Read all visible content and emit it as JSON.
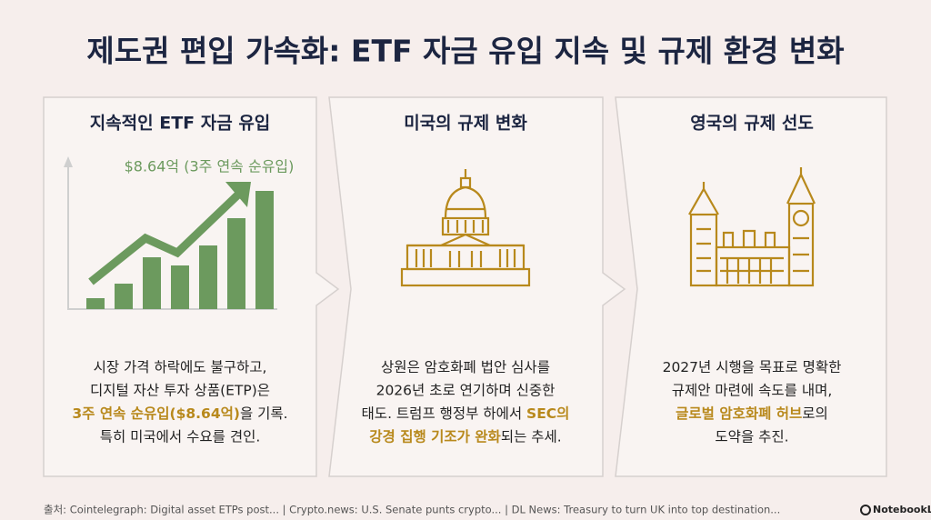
{
  "header": {
    "title": "제도권 편입 가속화: ETF 자금 유입 지속 및 규제 환경 변화"
  },
  "panels": [
    {
      "title": "지속적인 ETF 자금 유입",
      "annotation": "$8.64억 (3주 연속 순유입)",
      "lines": [
        [
          {
            "text": "시장 가격 하락에도 불구하고,",
            "em": false
          }
        ],
        [
          {
            "text": "디지털 자산 투자 상품(ETP)은",
            "em": false
          }
        ],
        [
          {
            "text": "3주 연속 순유입($8.64억)",
            "em": true
          },
          {
            "text": "을 기록.",
            "em": false
          }
        ],
        [
          {
            "text": "특히 미국에서 수요를 견인.",
            "em": false
          }
        ]
      ]
    },
    {
      "title": "미국의 규제 변화",
      "lines": [
        [
          {
            "text": "상원은 암호화폐 법안 심사를",
            "em": false
          }
        ],
        [
          {
            "text": "2026년 초로 연기하며 신중한",
            "em": false
          }
        ],
        [
          {
            "text": "태도. 트럼프 행정부 하에서 ",
            "em": false
          },
          {
            "text": "SEC의",
            "em": true
          }
        ],
        [
          {
            "text": "강경 집행 기조가 완화",
            "em": true
          },
          {
            "text": "되는 추세.",
            "em": false
          }
        ]
      ]
    },
    {
      "title": "영국의 규제 선도",
      "lines": [
        [
          {
            "text": "2027년 시행을 목표로 명확한",
            "em": false
          }
        ],
        [
          {
            "text": "규제안 마련에 속도를 내며,",
            "em": false
          }
        ],
        [
          {
            "text": "글로벌 암호화폐 허브",
            "em": true
          },
          {
            "text": "로의",
            "em": false
          }
        ],
        [
          {
            "text": "도약을 추진.",
            "em": false
          }
        ]
      ]
    }
  ],
  "footer": {
    "source": "출처: Cointelegraph: Digital asset ETPs post... | Crypto.news: U.S. Senate punts crypto... | DL News: Treasury to turn UK into top destination...",
    "brand": "NotebookLM"
  }
}
